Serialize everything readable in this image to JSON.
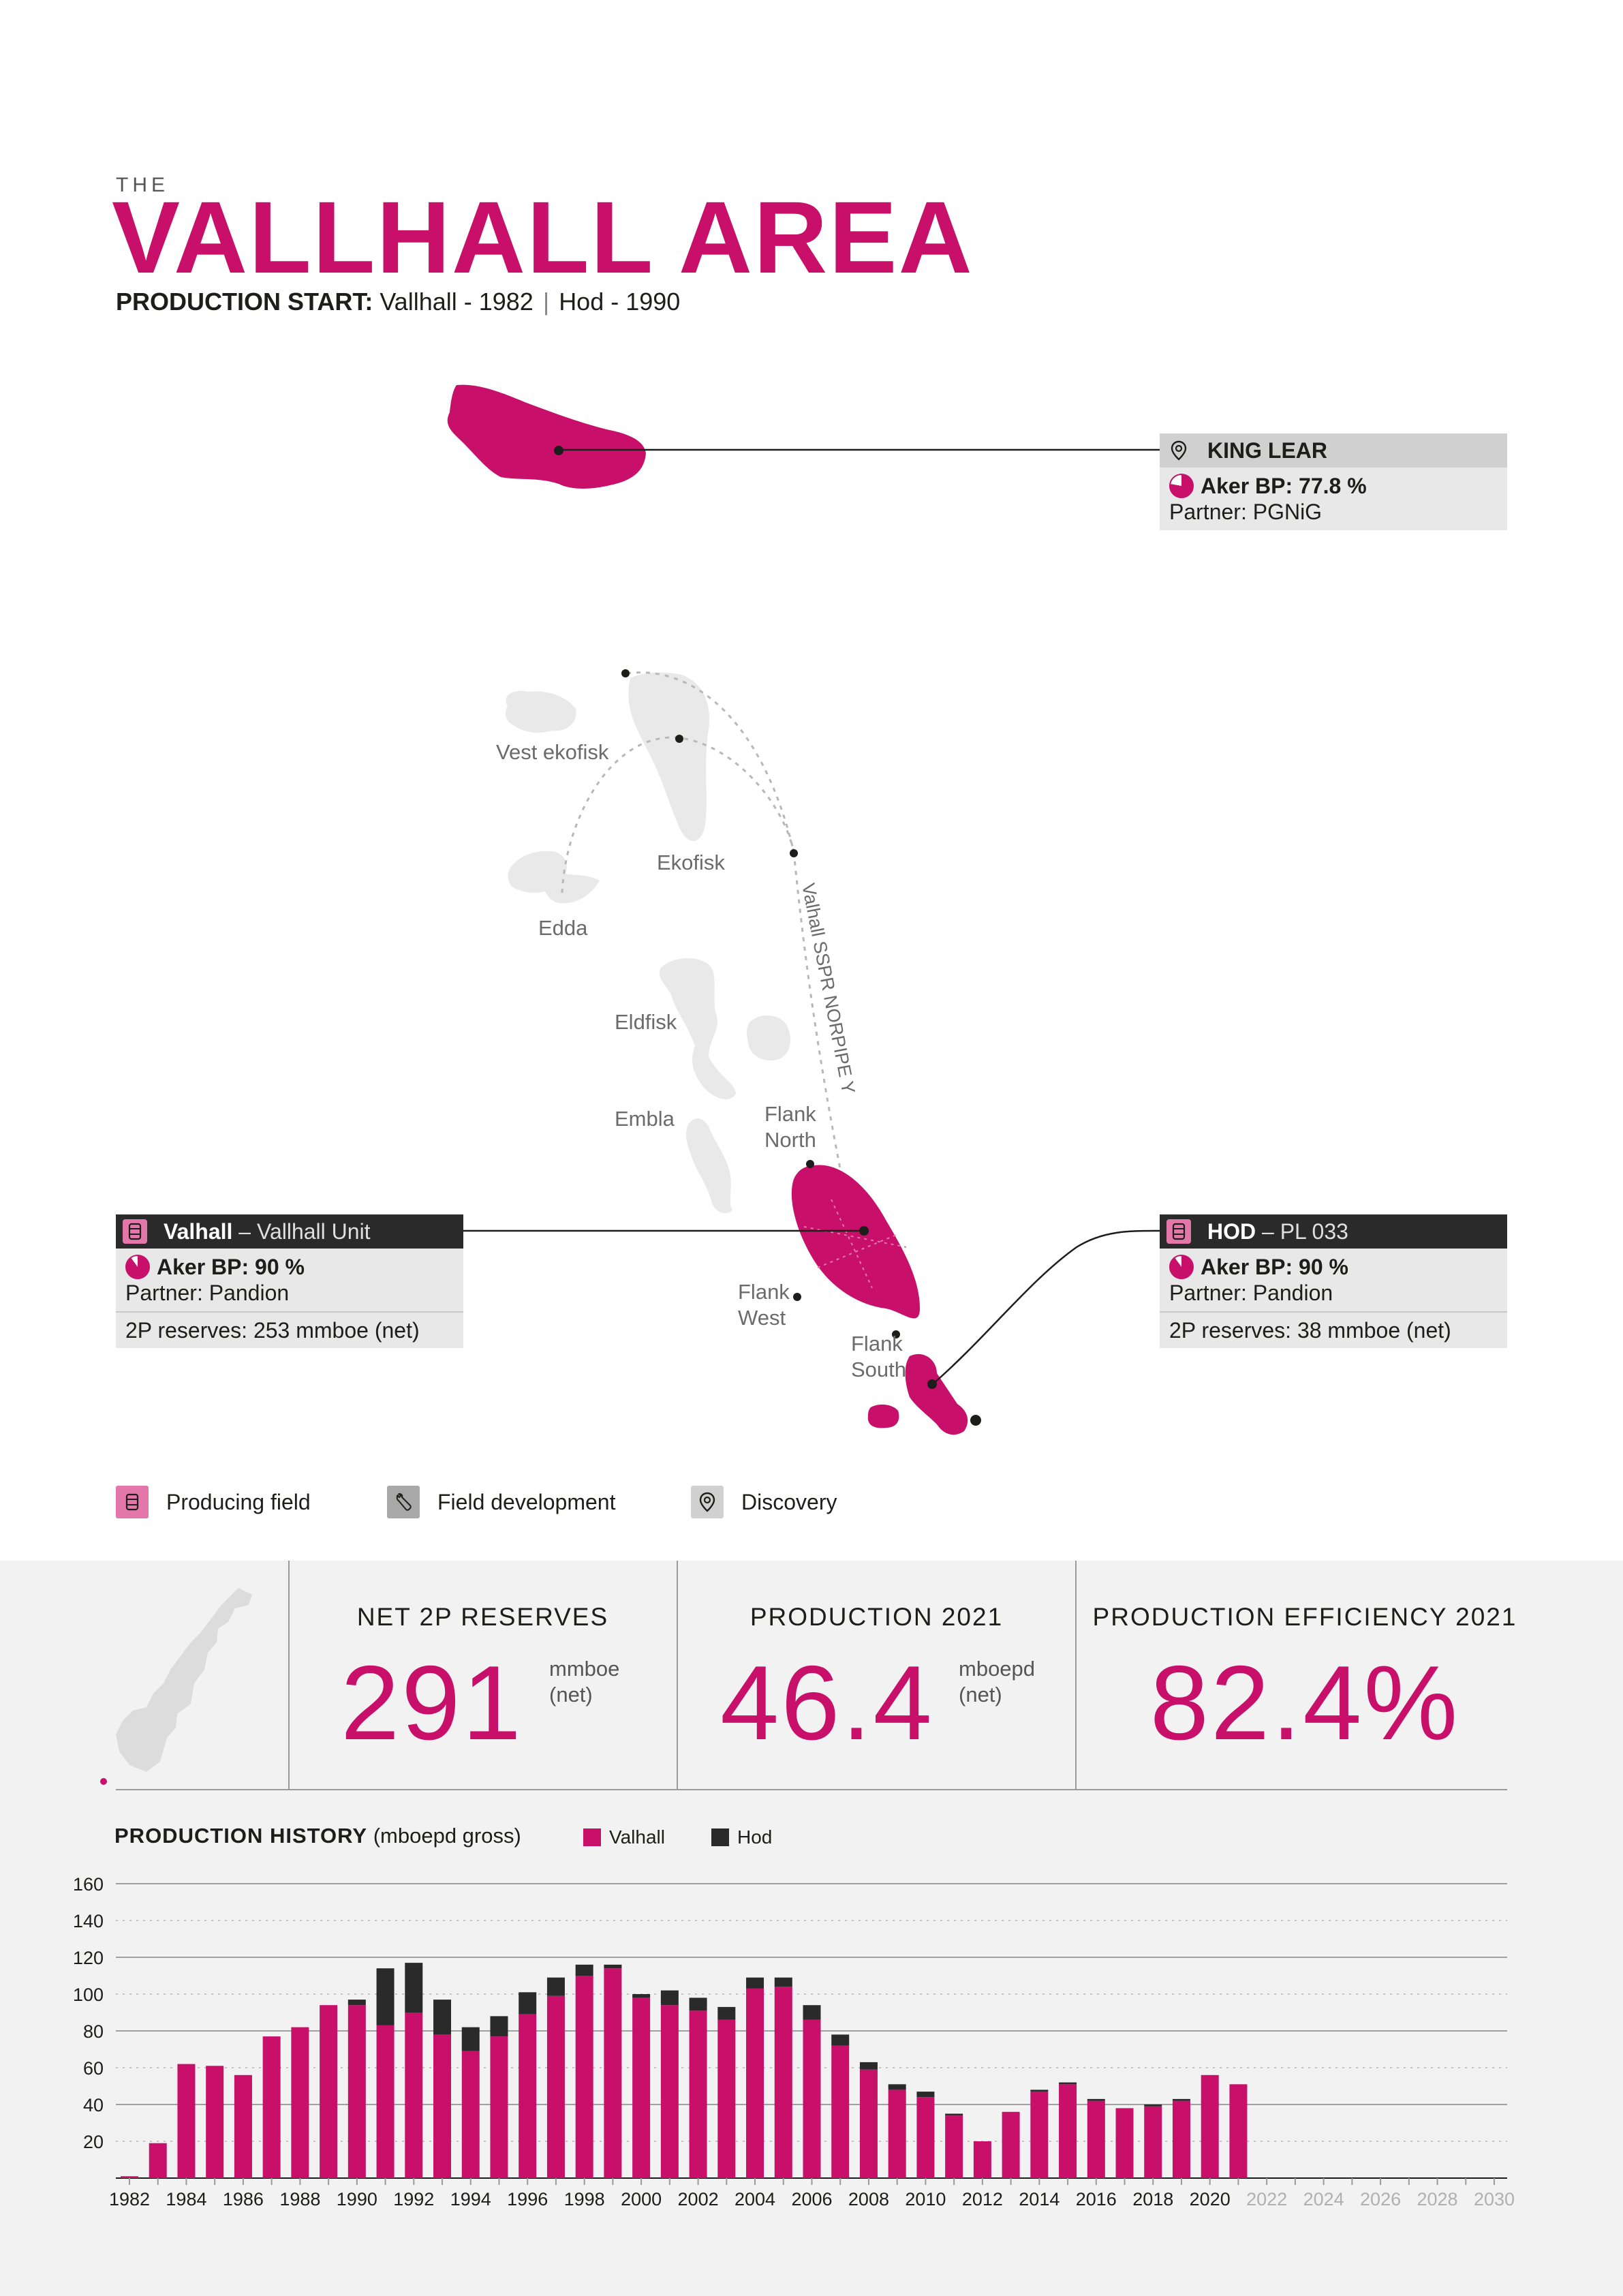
{
  "header": {
    "pre_title": "THE",
    "title": "VALLHALL AREA",
    "production_start_label": "PRODUCTION START:",
    "production_start_vallhall": "Vallhall - 1982",
    "production_start_hod": "Hod - 1990"
  },
  "map": {
    "labels": {
      "vest_ekofisk": "Vest ekofisk",
      "ekofisk": "Ekofisk",
      "edda": "Edda",
      "eldfisk": "Eldfisk",
      "embla": "Embla",
      "flank_north": [
        "Flank",
        "North"
      ],
      "flank_west": [
        "Flank",
        "West"
      ],
      "flank_south": [
        "Flank",
        "South"
      ],
      "pipeline": "Valhall SSPR NORPIPE Y"
    }
  },
  "cards": {
    "king_lear": {
      "name": "KING LEAR",
      "share": "Aker BP: 77.8 %",
      "share_pct": 77.8,
      "partner": "Partner: PGNiG",
      "icon": "location-pin-icon"
    },
    "valhall": {
      "name": "Valhall",
      "sub": "– Vallhall Unit",
      "share": "Aker BP: 90 %",
      "share_pct": 90,
      "partner": "Partner: Pandion",
      "reserves": "2P reserves: 253 mmboe (net)",
      "icon": "oil-barrel-icon"
    },
    "hod": {
      "name": "HOD",
      "sub": "– PL 033",
      "share": "Aker BP: 90 %",
      "share_pct": 90,
      "partner": "Partner: Pandion",
      "reserves": "2P reserves: 38 mmboe (net)",
      "icon": "oil-barrel-icon"
    }
  },
  "legend": {
    "producing": "Producing field",
    "development": "Field development",
    "discovery": "Discovery"
  },
  "kpis": {
    "reserves": {
      "label": "NET 2P RESERVES",
      "value": "291",
      "unit1": "mmboe",
      "unit2": "(net)"
    },
    "production": {
      "label": "PRODUCTION 2021",
      "value": "46.4",
      "unit1": "mboepd",
      "unit2": "(net)"
    },
    "efficiency": {
      "label": "PRODUCTION EFFICIENCY 2021",
      "value": "82.4%"
    }
  },
  "history": {
    "title": "PRODUCTION HISTORY",
    "subtitle": "(mboepd gross)"
  },
  "colors": {
    "accent": "#c8106a",
    "hod": "#2a2a2a",
    "map_gray": "#e9e9e9",
    "panel": "#f2f2f2"
  },
  "chart_data": {
    "type": "bar",
    "stacked": true,
    "title": "PRODUCTION HISTORY (mboepd gross)",
    "xlabel": "",
    "ylabel": "",
    "ylim": [
      0,
      160
    ],
    "yticks": [
      20,
      40,
      60,
      80,
      100,
      120,
      140,
      160
    ],
    "grid": true,
    "legend_position": "top",
    "categories": [
      1982,
      1983,
      1984,
      1985,
      1986,
      1987,
      1988,
      1989,
      1990,
      1991,
      1992,
      1993,
      1994,
      1995,
      1996,
      1997,
      1998,
      1999,
      2000,
      2001,
      2002,
      2003,
      2004,
      2005,
      2006,
      2007,
      2008,
      2009,
      2010,
      2011,
      2012,
      2013,
      2014,
      2015,
      2016,
      2017,
      2018,
      2019,
      2020,
      2021
    ],
    "axis_years": [
      1982,
      1984,
      1986,
      1988,
      1990,
      1992,
      1994,
      1996,
      1998,
      2000,
      2002,
      2004,
      2006,
      2008,
      2010,
      2012,
      2014,
      2016,
      2018,
      2020,
      2022,
      2024,
      2026,
      2028,
      2030
    ],
    "axis_year_range": [
      1982,
      2030
    ],
    "series": [
      {
        "name": "Valhall",
        "color": "#c8106a",
        "values": [
          1,
          19,
          62,
          61,
          56,
          77,
          82,
          94,
          94,
          83,
          90,
          78,
          69,
          77,
          89,
          99,
          110,
          114,
          98,
          94,
          91,
          86,
          103,
          104,
          86,
          72,
          59,
          48,
          44,
          34,
          20,
          36,
          47,
          51,
          42,
          38,
          39,
          42,
          56,
          51
        ]
      },
      {
        "name": "Hod",
        "color": "#2a2a2a",
        "values": [
          0,
          0,
          0,
          0,
          0,
          0,
          0,
          0,
          3,
          31,
          27,
          19,
          13,
          11,
          12,
          10,
          6,
          2,
          2,
          8,
          7,
          7,
          6,
          5,
          8,
          6,
          4,
          3,
          3,
          1,
          0,
          0,
          1,
          1,
          1,
          0,
          1,
          1,
          0,
          0
        ]
      }
    ]
  }
}
